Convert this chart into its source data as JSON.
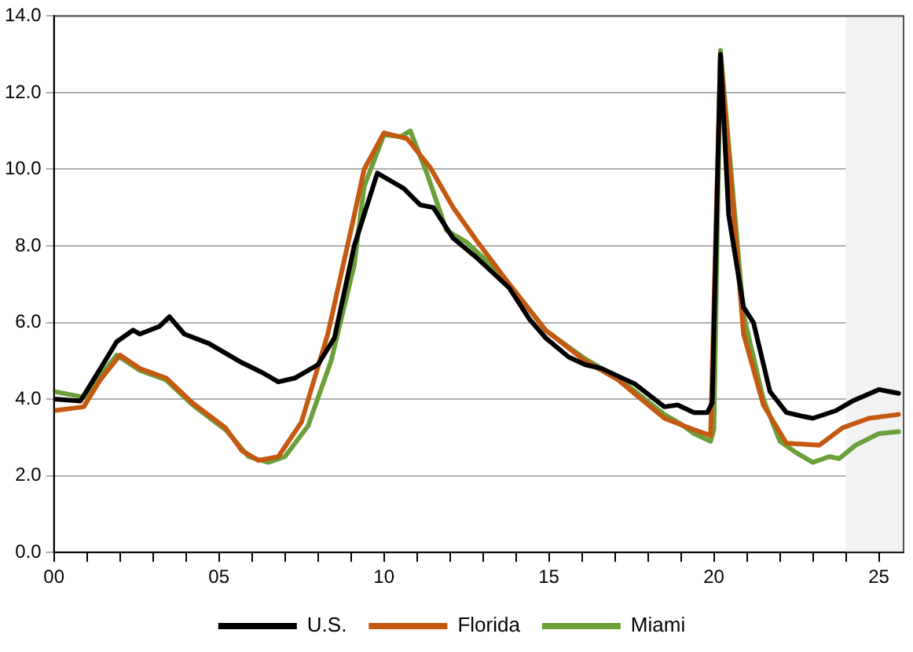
{
  "chart_data": {
    "type": "line",
    "xlim": [
      0,
      25.75
    ],
    "ylim": [
      0,
      14
    ],
    "yticks": [
      {
        "value": 0,
        "label": "0.0"
      },
      {
        "value": 2,
        "label": "2.0"
      },
      {
        "value": 4,
        "label": "4.0"
      },
      {
        "value": 6,
        "label": "6.0"
      },
      {
        "value": 8,
        "label": "8.0"
      },
      {
        "value": 10,
        "label": "10.0"
      },
      {
        "value": 12,
        "label": "12.0"
      },
      {
        "value": 14,
        "label": "14.0"
      }
    ],
    "xticks": [
      {
        "value": 0,
        "label": "00"
      },
      {
        "value": 1,
        "label": null
      },
      {
        "value": 2,
        "label": null
      },
      {
        "value": 3,
        "label": null
      },
      {
        "value": 4,
        "label": null
      },
      {
        "value": 5,
        "label": "05"
      },
      {
        "value": 6,
        "label": null
      },
      {
        "value": 7,
        "label": null
      },
      {
        "value": 8,
        "label": null
      },
      {
        "value": 9,
        "label": null
      },
      {
        "value": 10,
        "label": "10"
      },
      {
        "value": 11,
        "label": null
      },
      {
        "value": 12,
        "label": null
      },
      {
        "value": 13,
        "label": null
      },
      {
        "value": 14,
        "label": null
      },
      {
        "value": 15,
        "label": "15"
      },
      {
        "value": 16,
        "label": null
      },
      {
        "value": 17,
        "label": null
      },
      {
        "value": 18,
        "label": null
      },
      {
        "value": 19,
        "label": null
      },
      {
        "value": 20,
        "label": "20"
      },
      {
        "value": 21,
        "label": null
      },
      {
        "value": 22,
        "label": null
      },
      {
        "value": 23,
        "label": null
      },
      {
        "value": 24,
        "label": null
      },
      {
        "value": 25,
        "label": "25"
      }
    ],
    "grid": "y",
    "legend": "bottom",
    "marker": "none",
    "line_style": "solid",
    "bands": [
      {
        "axis": "x",
        "from": 24,
        "to": 25.75,
        "color": "#f2f2f2"
      }
    ],
    "series": [
      {
        "name": "U.S.",
        "color": "#000000",
        "x": [
          0,
          0.8,
          1.55,
          1.9,
          2.4,
          2.6,
          3.2,
          3.5,
          3.95,
          4.7,
          5.7,
          6.3,
          6.8,
          7.3,
          8.0,
          8.5,
          9.1,
          9.8,
          10.6,
          11.1,
          11.5,
          12.1,
          12.8,
          13.8,
          14.4,
          14.9,
          15.6,
          16.1,
          16.6,
          17.6,
          18.5,
          18.9,
          19.4,
          19.8,
          19.95,
          20.2,
          20.45,
          20.9,
          21.2,
          21.7,
          22.2,
          22.7,
          23.0,
          23.7,
          24.2,
          25.0,
          25.6
        ],
        "values": [
          4.0,
          3.95,
          5.0,
          5.5,
          5.8,
          5.7,
          5.9,
          6.15,
          5.7,
          5.45,
          4.95,
          4.7,
          4.45,
          4.55,
          4.9,
          5.6,
          8.0,
          9.9,
          9.5,
          9.07,
          9.0,
          8.2,
          7.7,
          6.9,
          6.1,
          5.6,
          5.1,
          4.9,
          4.8,
          4.4,
          3.8,
          3.85,
          3.65,
          3.65,
          3.9,
          13.0,
          8.8,
          6.4,
          6.0,
          4.2,
          3.65,
          3.55,
          3.5,
          3.7,
          3.95,
          4.25,
          4.15
        ]
      },
      {
        "name": "Florida",
        "color": "#c65911",
        "x": [
          0,
          0.9,
          1.4,
          2.0,
          2.6,
          3.4,
          4.2,
          5.2,
          5.7,
          6.2,
          6.8,
          7.5,
          8.3,
          9.1,
          9.4,
          10.0,
          10.7,
          11.4,
          12.1,
          12.8,
          13.8,
          14.9,
          16.1,
          17.1,
          18.5,
          19.4,
          19.9,
          20.2,
          20.9,
          21.5,
          22.2,
          23.2,
          23.9,
          24.7,
          25.6
        ],
        "values": [
          3.7,
          3.8,
          4.5,
          5.15,
          4.8,
          4.55,
          3.9,
          3.25,
          2.65,
          2.4,
          2.5,
          3.4,
          5.7,
          8.8,
          10.0,
          10.95,
          10.8,
          10.05,
          9.0,
          8.15,
          7.0,
          5.8,
          5.0,
          4.5,
          3.5,
          3.2,
          3.05,
          13.0,
          5.7,
          3.85,
          2.85,
          2.8,
          3.25,
          3.5,
          3.6
        ]
      },
      {
        "name": "Miami",
        "color": "#6a9f3a",
        "x": [
          0,
          0.9,
          1.9,
          2.6,
          3.4,
          4.2,
          5.2,
          5.9,
          6.5,
          7.0,
          7.7,
          8.4,
          9.1,
          9.4,
          10.0,
          10.5,
          10.8,
          11.3,
          11.9,
          12.5,
          13.5,
          13.8,
          14.9,
          16.1,
          17.1,
          18.5,
          19.0,
          19.4,
          19.9,
          20.0,
          20.2,
          20.9,
          21.5,
          22.0,
          22.5,
          23.0,
          23.5,
          23.8,
          24.3,
          25.0,
          25.6
        ],
        "values": [
          4.2,
          4.05,
          5.15,
          4.75,
          4.5,
          3.85,
          3.2,
          2.5,
          2.35,
          2.5,
          3.3,
          5.0,
          7.5,
          9.55,
          10.9,
          10.85,
          11.0,
          9.9,
          8.4,
          8.1,
          7.3,
          7.0,
          5.8,
          5.05,
          4.55,
          3.6,
          3.35,
          3.1,
          2.9,
          3.2,
          13.1,
          6.2,
          4.0,
          2.9,
          2.6,
          2.35,
          2.5,
          2.45,
          2.8,
          3.1,
          3.15
        ]
      }
    ]
  }
}
